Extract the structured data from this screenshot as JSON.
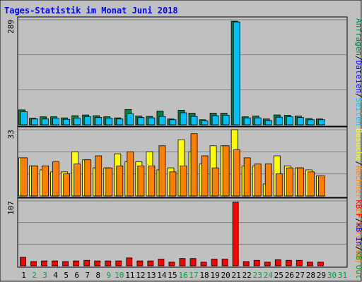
{
  "title": "Tages-Statistik im Monat Juni 2018",
  "colors": {
    "background": "#C0C0C0",
    "title": "#0000FF",
    "hits": "#008040",
    "files": "#00C0FF",
    "sites": "#FF8000",
    "visits": "#FFFF00",
    "kbin": "#00A000",
    "kbout": "#FF0000",
    "weekend": "#00A040",
    "weekday": "#000000"
  },
  "legend_right": {
    "top": [
      {
        "text": "Anfragen",
        "color": "#008040"
      },
      {
        "text": "/",
        "color": "#000000"
      },
      {
        "text": "Dateien",
        "color": "#0000FF"
      },
      {
        "text": "/",
        "color": "#000000"
      },
      {
        "text": "Seiten",
        "color": "#00C0FF"
      }
    ],
    "middle": [
      {
        "text": "Besuche",
        "color": "#FFFF00"
      },
      {
        "text": "/",
        "color": "#000000"
      },
      {
        "text": "Rechner (IP-Adressen)",
        "color": "#FF8000"
      }
    ],
    "bottom": [
      {
        "text": "kB F",
        "color": "#FF0000"
      },
      {
        "text": "/",
        "color": "#000000"
      },
      {
        "text": "kB In",
        "color": "#0000FF"
      },
      {
        "text": "/",
        "color": "#000000"
      },
      {
        "text": "kB Out",
        "color": "#00A000"
      }
    ]
  },
  "chart_data": [
    {
      "type": "bar",
      "name": "Anfragen / Dateien",
      "ymax_label": "289",
      "ylim": [
        0,
        289
      ],
      "categories": [
        "1",
        "2",
        "3",
        "4",
        "5",
        "6",
        "7",
        "8",
        "9",
        "10",
        "11",
        "12",
        "13",
        "14",
        "15",
        "16",
        "17",
        "18",
        "19",
        "20",
        "21",
        "22",
        "23",
        "24",
        "25",
        "26",
        "27",
        "28",
        "29",
        "30",
        "31"
      ],
      "series": [
        {
          "name": "Anfragen",
          "values": [
            41,
            18,
            22,
            22,
            19,
            25,
            27,
            25,
            22,
            19,
            42,
            24,
            23,
            38,
            16,
            40,
            32,
            14,
            32,
            32,
            285,
            22,
            24,
            16,
            27,
            26,
            24,
            17,
            16,
            0,
            0
          ]
        },
        {
          "name": "Dateien",
          "values": [
            36,
            16,
            16,
            18,
            15,
            18,
            22,
            20,
            18,
            16,
            30,
            20,
            19,
            23,
            14,
            33,
            23,
            11,
            25,
            26,
            283,
            19,
            19,
            12,
            21,
            22,
            20,
            14,
            14,
            0,
            0
          ]
        }
      ]
    },
    {
      "type": "bar",
      "name": "Besuche / Rechner",
      "ymax_label": "33",
      "ylim": [
        0,
        33
      ],
      "categories": [
        "1",
        "2",
        "3",
        "4",
        "5",
        "6",
        "7",
        "8",
        "9",
        "10",
        "11",
        "12",
        "13",
        "14",
        "15",
        "16",
        "17",
        "18",
        "19",
        "20",
        "21",
        "22",
        "23",
        "24",
        "25",
        "26",
        "27",
        "28",
        "29",
        "30",
        "31"
      ],
      "series": [
        {
          "name": "Besuche",
          "values": [
            19,
            15,
            13,
            12,
            12,
            22,
            18,
            14,
            14,
            21,
            17,
            17,
            22,
            13,
            14,
            28,
            22,
            16,
            25,
            25,
            33,
            15,
            15,
            6,
            20,
            15,
            14,
            13,
            10,
            0,
            0
          ]
        },
        {
          "name": "Rechner",
          "values": [
            19,
            15,
            15,
            17,
            11,
            16,
            18,
            20,
            14,
            15,
            22,
            15,
            15,
            25,
            12,
            15,
            31,
            20,
            14,
            25,
            23,
            19,
            16,
            16,
            11,
            14,
            14,
            12,
            10,
            0,
            0
          ]
        }
      ]
    },
    {
      "type": "bar",
      "name": "kB F",
      "ymax_label": "107",
      "ylim": [
        0,
        107
      ],
      "categories": [
        "1",
        "2",
        "3",
        "4",
        "5",
        "6",
        "7",
        "8",
        "9",
        "10",
        "11",
        "12",
        "13",
        "14",
        "15",
        "16",
        "17",
        "18",
        "19",
        "20",
        "21",
        "22",
        "23",
        "24",
        "25",
        "26",
        "27",
        "28",
        "29",
        "30",
        "31"
      ],
      "series": [
        {
          "name": "kB F",
          "values": [
            14,
            7,
            8,
            8,
            7,
            8,
            9,
            8,
            8,
            8,
            13,
            8,
            8,
            11,
            6,
            12,
            12,
            6,
            11,
            11,
            105,
            7,
            9,
            6,
            10,
            9,
            9,
            6,
            6,
            0,
            0
          ]
        }
      ]
    }
  ]
}
